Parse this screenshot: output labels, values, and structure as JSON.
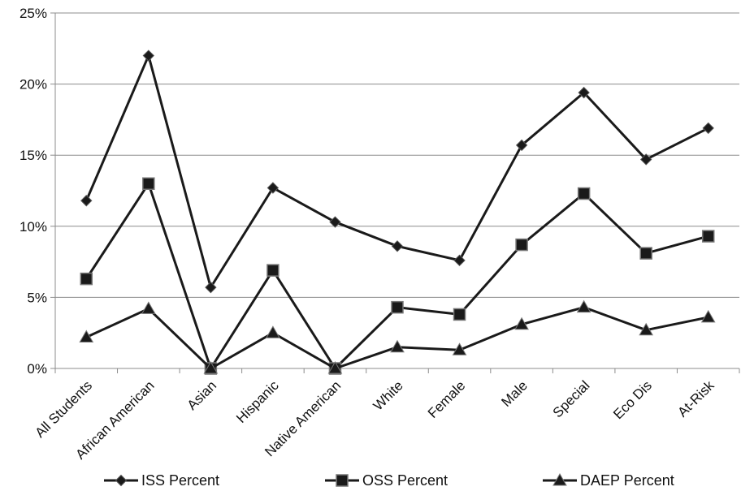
{
  "chart_data": {
    "type": "line",
    "categories": [
      "All Students",
      "African American",
      "Asian",
      "Hispanic",
      "Native American",
      "White",
      "Female",
      "Male",
      "Special",
      "Eco Dis",
      "At-Risk"
    ],
    "y_ticks": [
      "0%",
      "5%",
      "10%",
      "15%",
      "20%",
      "25%"
    ],
    "ylim": [
      0,
      25
    ],
    "grid": true,
    "legend_position": "bottom",
    "series": [
      {
        "name": "ISS Percent",
        "marker": "diamond",
        "color": "#1a1a1a",
        "values": [
          11.8,
          22.0,
          5.7,
          12.7,
          10.3,
          8.6,
          7.6,
          15.7,
          19.4,
          14.7,
          16.9
        ]
      },
      {
        "name": "OSS Percent",
        "marker": "square",
        "color": "#1a1a1a",
        "values": [
          6.3,
          13.0,
          0.0,
          6.9,
          0.0,
          4.3,
          3.8,
          8.7,
          12.3,
          8.1,
          9.3
        ]
      },
      {
        "name": "DAEP Percent",
        "marker": "triangle",
        "color": "#1a1a1a",
        "values": [
          2.2,
          4.2,
          0.0,
          2.5,
          0.0,
          1.5,
          1.3,
          3.1,
          4.3,
          2.7,
          3.6
        ]
      }
    ]
  }
}
